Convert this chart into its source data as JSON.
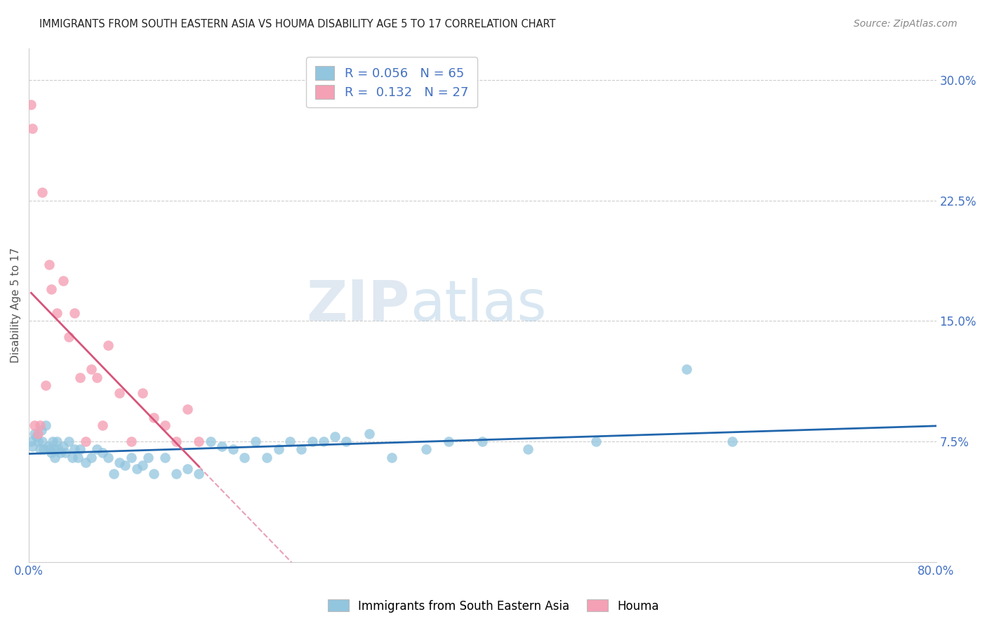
{
  "title": "IMMIGRANTS FROM SOUTH EASTERN ASIA VS HOUMA DISABILITY AGE 5 TO 17 CORRELATION CHART",
  "source": "Source: ZipAtlas.com",
  "xlabel_ticks": [
    "0.0%",
    "80.0%"
  ],
  "ylabel_ticks": [
    "7.5%",
    "15.0%",
    "22.5%",
    "30.0%"
  ],
  "ylabel_label": "Disability Age 5 to 17",
  "legend1_label": "Immigrants from South Eastern Asia",
  "legend2_label": "Houma",
  "R1": 0.056,
  "N1": 65,
  "R2": 0.132,
  "N2": 27,
  "color_blue": "#92c5de",
  "color_pink": "#f4a0b5",
  "color_line_blue": "#2166ac",
  "color_line_pink": "#d6547a",
  "watermark_zip": "ZIP",
  "watermark_atlas": "atlas",
  "blue_x": [
    0.2,
    0.3,
    0.5,
    0.7,
    0.8,
    1.0,
    1.1,
    1.2,
    1.3,
    1.5,
    1.7,
    1.8,
    2.0,
    2.1,
    2.2,
    2.3,
    2.5,
    2.6,
    2.8,
    3.0,
    3.2,
    3.5,
    3.8,
    4.0,
    4.3,
    4.5,
    5.0,
    5.5,
    6.0,
    6.5,
    7.0,
    7.5,
    8.0,
    8.5,
    9.0,
    9.5,
    10.0,
    10.5,
    11.0,
    12.0,
    13.0,
    14.0,
    15.0,
    16.0,
    17.0,
    18.0,
    19.0,
    20.0,
    21.0,
    22.0,
    23.0,
    24.0,
    25.0,
    26.0,
    27.0,
    28.0,
    30.0,
    32.0,
    35.0,
    37.0,
    40.0,
    44.0,
    50.0,
    58.0,
    62.0
  ],
  "blue_y": [
    7.5,
    7.2,
    8.0,
    7.8,
    7.5,
    7.0,
    8.2,
    7.5,
    7.0,
    8.5,
    7.2,
    7.0,
    6.8,
    7.5,
    7.0,
    6.5,
    7.5,
    7.0,
    6.8,
    7.2,
    6.8,
    7.5,
    6.5,
    7.0,
    6.5,
    7.0,
    6.2,
    6.5,
    7.0,
    6.8,
    6.5,
    5.5,
    6.2,
    6.0,
    6.5,
    5.8,
    6.0,
    6.5,
    5.5,
    6.5,
    5.5,
    5.8,
    5.5,
    7.5,
    7.2,
    7.0,
    6.5,
    7.5,
    6.5,
    7.0,
    7.5,
    7.0,
    7.5,
    7.5,
    7.8,
    7.5,
    8.0,
    6.5,
    7.0,
    7.5,
    7.5,
    7.0,
    7.5,
    12.0,
    7.5
  ],
  "pink_x": [
    0.2,
    0.3,
    0.5,
    0.8,
    1.0,
    1.2,
    1.5,
    1.8,
    2.0,
    2.5,
    3.0,
    3.5,
    4.0,
    4.5,
    5.0,
    5.5,
    6.0,
    6.5,
    7.0,
    8.0,
    9.0,
    10.0,
    11.0,
    12.0,
    13.0,
    14.0,
    15.0
  ],
  "pink_y": [
    28.5,
    27.0,
    8.5,
    8.0,
    8.5,
    23.0,
    11.0,
    18.5,
    17.0,
    15.5,
    17.5,
    14.0,
    15.5,
    11.5,
    7.5,
    12.0,
    11.5,
    8.5,
    13.5,
    10.5,
    7.5,
    10.5,
    9.0,
    8.5,
    7.5,
    9.5,
    7.5
  ],
  "xmin": 0,
  "xmax": 80,
  "ymin": 0,
  "ymax": 32,
  "ytick_vals": [
    7.5,
    15.0,
    22.5,
    30.0
  ],
  "background_color": "#ffffff",
  "title_color": "#222222",
  "source_color": "#888888",
  "tick_color": "#4472c4",
  "ylabel_color": "#555555"
}
